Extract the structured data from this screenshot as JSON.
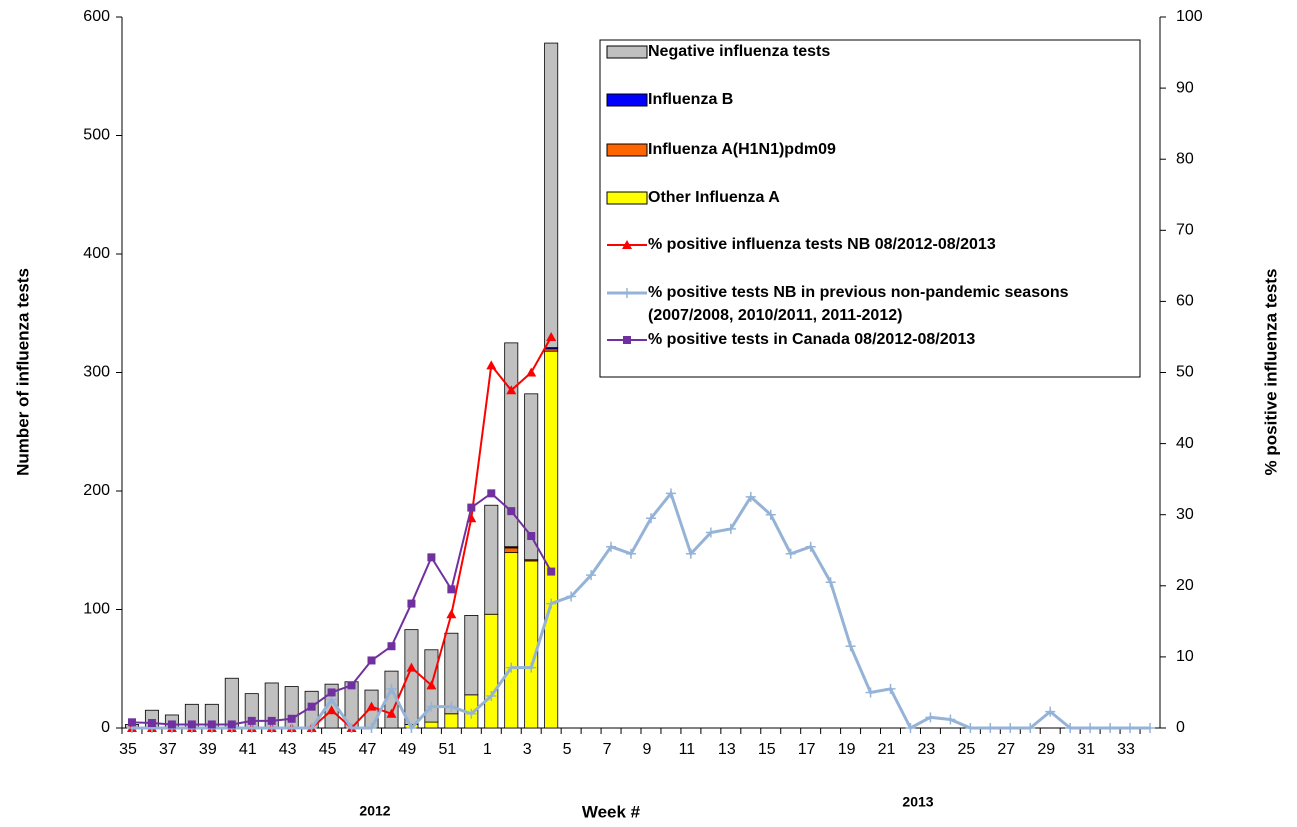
{
  "chart_data": {
    "type": "bar",
    "y_label": "Number of influenza tests",
    "y2_label": "% positive influenza tests",
    "x_label": "Week #",
    "annotations": [
      "2012",
      "2013"
    ],
    "categories": [
      "35",
      null,
      "37",
      null,
      "39",
      null,
      "41",
      null,
      "43",
      null,
      "45",
      null,
      "47",
      null,
      "49",
      null,
      "51",
      null,
      "1",
      null,
      "3",
      null,
      "5",
      null,
      "7",
      null,
      "9",
      null,
      "11",
      null,
      "13",
      null,
      "15",
      null,
      "17",
      null,
      "19",
      null,
      "21",
      null,
      "23",
      null,
      "25",
      null,
      "27",
      null,
      "29",
      null,
      "31",
      null,
      "33",
      null
    ],
    "ylim": [
      0,
      600
    ],
    "yticks": [
      0,
      100,
      200,
      300,
      400,
      500,
      600
    ],
    "y2lim": [
      0,
      100
    ],
    "y2ticks": [
      0,
      10,
      20,
      30,
      40,
      50,
      60,
      70,
      80,
      90,
      100
    ],
    "stacked": true,
    "series": [
      {
        "name": "Negative influenza tests",
        "type": "bar",
        "color": "#c0c0c0",
        "values": [
          3,
          15,
          11,
          20,
          20,
          42,
          29,
          38,
          35,
          31,
          37,
          39,
          32,
          48,
          80,
          61,
          68,
          67,
          92,
          172,
          140,
          257,
          null,
          null,
          null,
          null,
          null,
          null,
          null,
          null,
          null,
          null,
          null,
          null,
          null,
          null,
          null,
          null,
          null,
          null,
          null,
          null,
          null,
          null,
          null,
          null,
          null,
          null,
          null,
          null,
          null,
          null
        ]
      },
      {
        "name": "Influenza B",
        "type": "bar",
        "color": "#0000ff",
        "values": [
          0,
          0,
          0,
          0,
          0,
          0,
          0,
          0,
          0,
          0,
          0,
          0,
          0,
          0,
          0,
          0,
          0,
          0,
          0,
          1,
          0,
          1,
          null,
          null,
          null,
          null,
          null,
          null,
          null,
          null,
          null,
          null,
          null,
          null,
          null,
          null,
          null,
          null,
          null,
          null,
          null,
          null,
          null,
          null,
          null,
          null,
          null,
          null,
          null,
          null,
          null,
          null
        ]
      },
      {
        "name": "Influenza A(H1N1)pdm09",
        "type": "bar",
        "color": "#ff6600",
        "values": [
          0,
          0,
          0,
          0,
          0,
          0,
          0,
          0,
          0,
          0,
          0,
          0,
          0,
          0,
          0,
          0,
          0,
          0,
          0,
          4,
          1,
          2,
          null,
          null,
          null,
          null,
          null,
          null,
          null,
          null,
          null,
          null,
          null,
          null,
          null,
          null,
          null,
          null,
          null,
          null,
          null,
          null,
          null,
          null,
          null,
          null,
          null,
          null,
          null,
          null,
          null,
          null
        ]
      },
      {
        "name": "Other Influenza  A",
        "type": "bar",
        "color": "#ffff00",
        "values": [
          0,
          0,
          0,
          0,
          0,
          0,
          0,
          0,
          0,
          0,
          0,
          0,
          0,
          0,
          3,
          5,
          12,
          28,
          96,
          148,
          141,
          318,
          null,
          null,
          null,
          null,
          null,
          null,
          null,
          null,
          null,
          null,
          null,
          null,
          null,
          null,
          null,
          null,
          null,
          null,
          null,
          null,
          null,
          null,
          null,
          null,
          null,
          null,
          null,
          null,
          null,
          null
        ]
      },
      {
        "name": "% positive  influenza tests NB 08/2012-08/2013",
        "type": "line",
        "axis": "y2",
        "marker": "triangle",
        "color": "#ff0000",
        "values": [
          0,
          0,
          0,
          0,
          0,
          0,
          0,
          0,
          0,
          0,
          2.5,
          0,
          3,
          2,
          8.5,
          6,
          16,
          29.5,
          51,
          47.5,
          50,
          55,
          null,
          null,
          null,
          null,
          null,
          null,
          null,
          null,
          null,
          null,
          null,
          null,
          null,
          null,
          null,
          null,
          null,
          null,
          null,
          null,
          null,
          null,
          null,
          null,
          null,
          null,
          null,
          null,
          null,
          null
        ]
      },
      {
        "name": "% positive tests NB in previous  non-pandemic seasons (2007/2008,  2010/2011,  2011-2012)",
        "type": "line",
        "axis": "y2",
        "marker": "plus",
        "color": "#95b3d7",
        "values": [
          0,
          0,
          0,
          0,
          0,
          0,
          0,
          0,
          0,
          0,
          4,
          0,
          0,
          5.5,
          0,
          3,
          3,
          2,
          4.5,
          8.5,
          8.5,
          17.5,
          18.5,
          21.5,
          25.5,
          24.5,
          29.5,
          33,
          24.5,
          27.5,
          28,
          32.5,
          30,
          24.5,
          25.5,
          20.5,
          11.5,
          5,
          5.5,
          0,
          1.5,
          1.2,
          0,
          0,
          0,
          0,
          2.3,
          0,
          0,
          0,
          0,
          0
        ]
      },
      {
        "name": "% positive tests  in Canada 08/2012-08/2013",
        "type": "line",
        "axis": "y2",
        "marker": "square",
        "color": "#7030a0",
        "values": [
          0.8,
          0.7,
          0.5,
          0.5,
          0.5,
          0.5,
          1,
          1,
          1.3,
          3,
          5,
          6,
          9.5,
          11.5,
          17.5,
          24,
          19.5,
          31,
          33,
          30.5,
          27,
          22,
          null,
          null,
          null,
          null,
          null,
          null,
          null,
          null,
          null,
          null,
          null,
          null,
          null,
          null,
          null,
          null,
          null,
          null,
          null,
          null,
          null,
          null,
          null,
          null,
          null,
          null,
          null,
          null,
          null,
          null
        ]
      }
    ]
  }
}
